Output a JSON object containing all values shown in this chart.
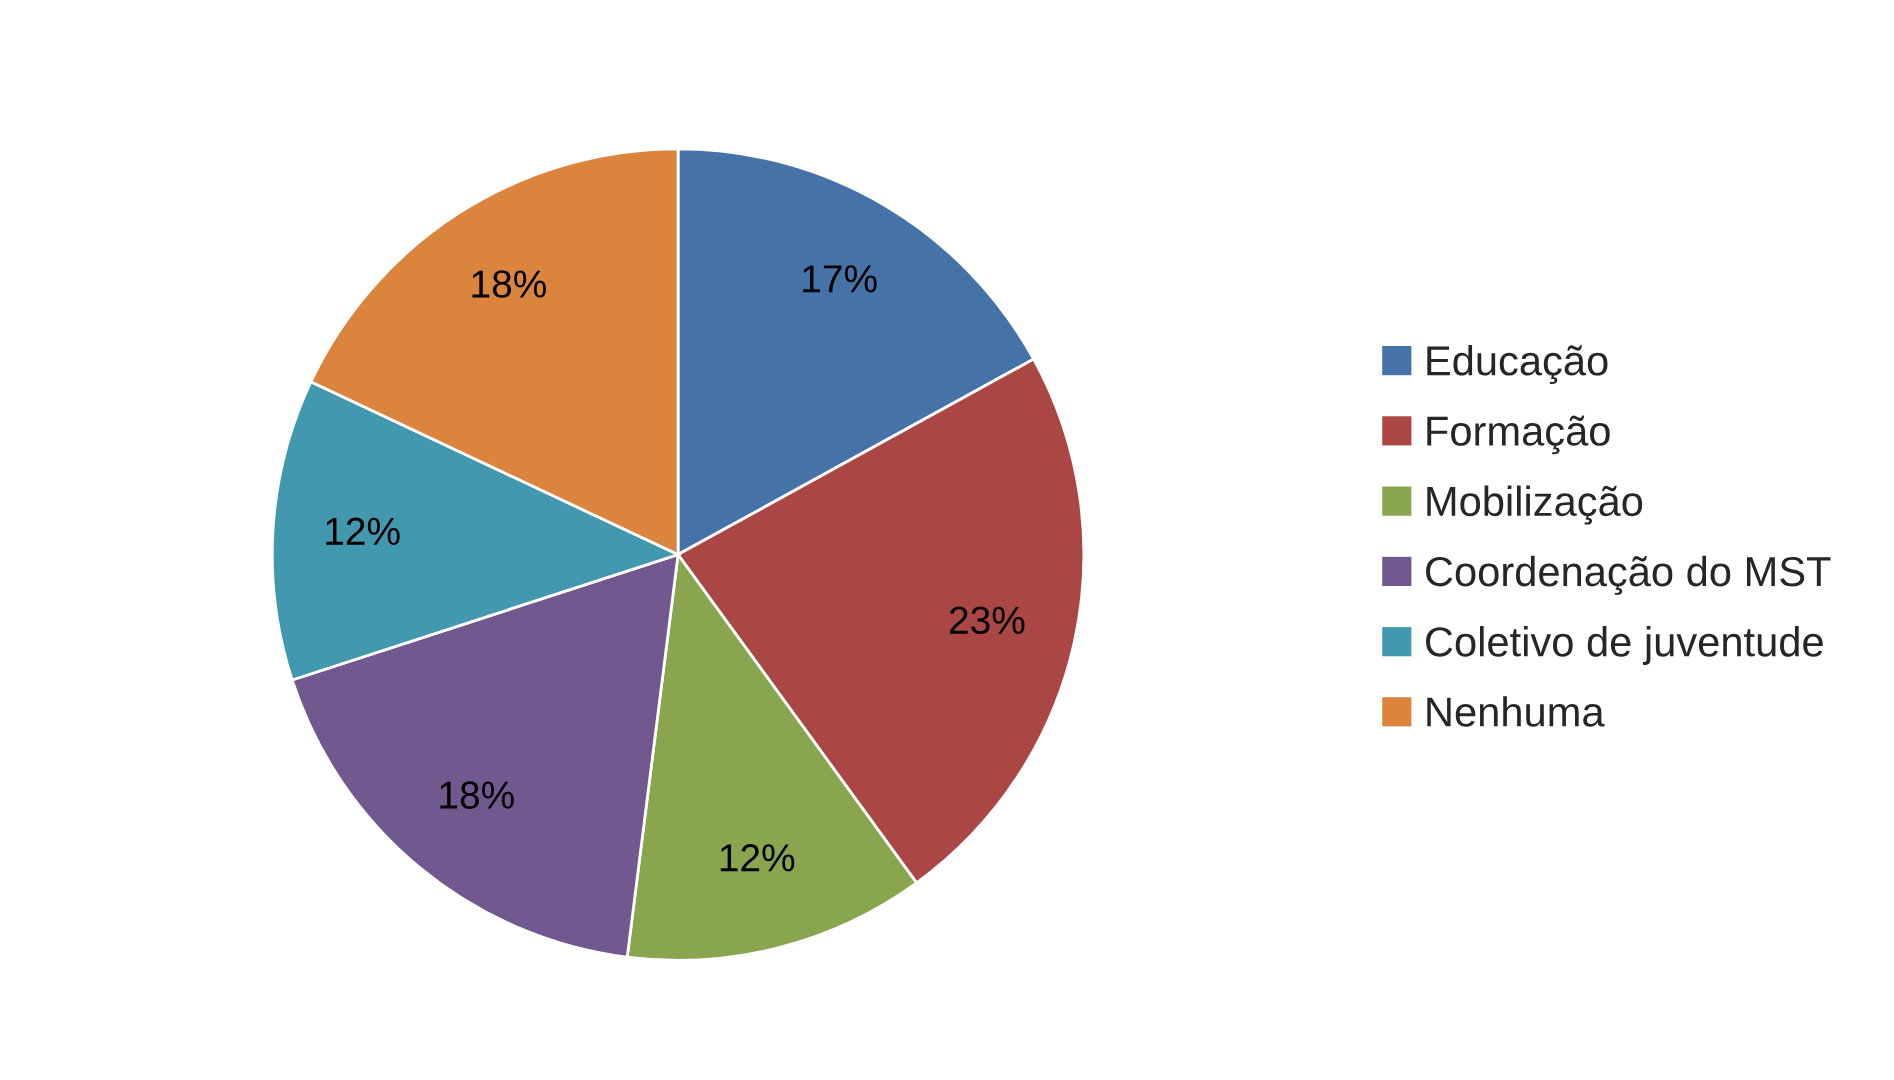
{
  "chart_data": {
    "type": "pie",
    "categories": [
      "Educação",
      "Formação",
      "Mobilização",
      "Coordenação do MST",
      "Coletivo de juventude",
      "Nenhuma"
    ],
    "values": [
      17,
      23,
      12,
      18,
      12,
      18
    ],
    "value_labels": [
      "17%",
      "23%",
      "12%",
      "18%",
      "12%",
      "18%"
    ],
    "colors": [
      "#4572a7",
      "#aa4643",
      "#89a54e",
      "#71588f",
      "#4198af",
      "#db843d"
    ],
    "legend": "right"
  }
}
